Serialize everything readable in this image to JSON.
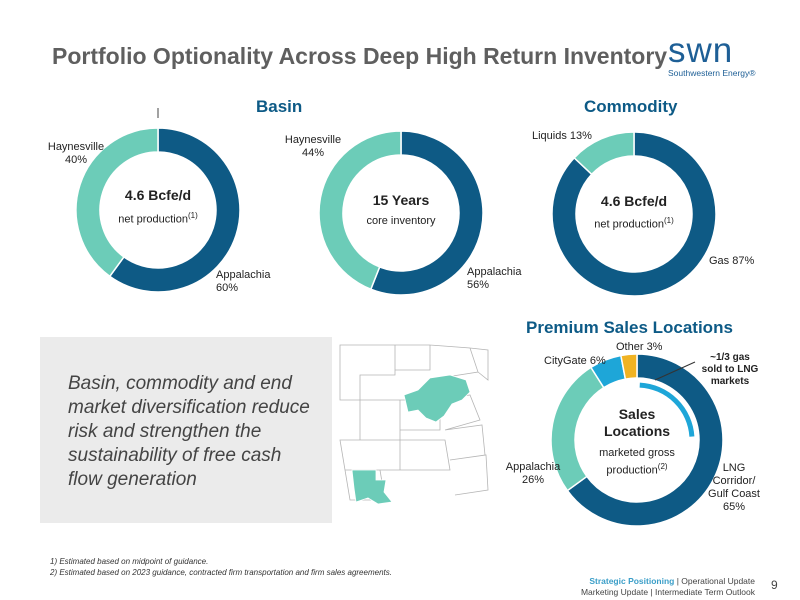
{
  "header": {
    "title": "Portfolio Optionality Across Deep High Return Inventory"
  },
  "logo": {
    "word": "swn",
    "tagline": "Southwestern Energy®"
  },
  "colors": {
    "dark": "#0e5a85",
    "light": "#6cccb8",
    "blue": "#1ea6d8",
    "gold": "#f0b323"
  },
  "sections": {
    "basin": "Basin",
    "commodity": "Commodity",
    "sales": "Premium Sales Locations"
  },
  "chart_data": [
    {
      "type": "pie",
      "title": "Basin",
      "categories": [
        "Appalachia",
        "Haynesville"
      ],
      "values": [
        60,
        40
      ],
      "labels": [
        "Appalachia\n60%",
        "Haynesville\n40%"
      ],
      "center": {
        "main": "4.6 Bcfe/d",
        "sub": "net production",
        "sup": "(1)"
      }
    },
    {
      "type": "pie",
      "title": "Basin",
      "categories": [
        "Appalachia",
        "Haynesville"
      ],
      "values": [
        56,
        44
      ],
      "labels": [
        "Appalachia\n56%",
        "Haynesville\n44%"
      ],
      "center": {
        "main": "15 Years",
        "sub": "core inventory",
        "sup": ""
      }
    },
    {
      "type": "pie",
      "title": "Commodity",
      "categories": [
        "Gas",
        "Liquids"
      ],
      "values": [
        87,
        13
      ],
      "labels": [
        "Gas 87%",
        "Liquids 13%"
      ],
      "center": {
        "main": "4.6 Bcfe/d",
        "sub": "net production",
        "sup": "(1)"
      }
    },
    {
      "type": "pie",
      "title": "Premium Sales Locations",
      "categories": [
        "LNG Corridor/ Gulf Coast",
        "Appalachia",
        "CityGate",
        "Other"
      ],
      "values": [
        65,
        26,
        6,
        3
      ],
      "labels": [
        "LNG\nCorridor/\nGulf Coast\n65%",
        "Appalachia\n26%",
        "CityGate 6%",
        "Other 3%"
      ],
      "center": {
        "main": "Sales\nLocations",
        "sub": "marketed gross\nproduction",
        "sup": "(2)"
      },
      "annotation": "~1/3 gas\nsold to LNG\nmarkets"
    }
  ],
  "quote": "Basin, commodity and end market diversification reduce risk and strengthen the sustainability of free cash flow generation",
  "footnotes": [
    "1) Estimated based on midpoint of guidance.",
    "2) Estimated based on 2023 guidance, contracted firm transportation and firm sales agreements."
  ],
  "footer": {
    "active": "Strategic Positioning",
    "rest1": " | Operational Update",
    "line2": "Marketing Update | Intermediate Term Outlook",
    "page": "9"
  }
}
